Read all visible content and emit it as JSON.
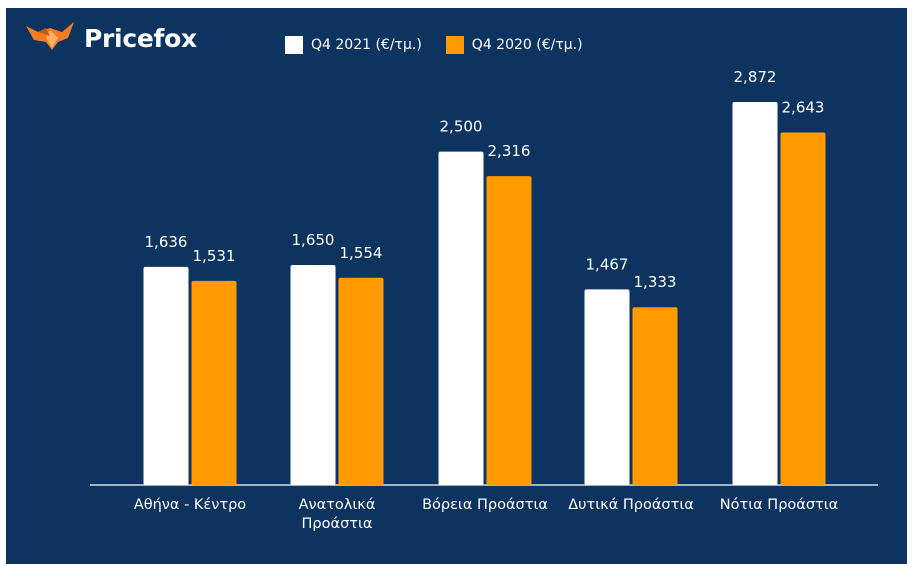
{
  "brand": {
    "name": "Pricefox",
    "icon": "fox-icon",
    "color": "#f07c24"
  },
  "chart_data": {
    "type": "bar",
    "categories": [
      "Αθήνα - Κέντρο",
      [
        "Ανατολικά",
        "Προάστια"
      ],
      "Βόρεια Προάστια",
      "Δυτικά Προάστια",
      "Νότια Προάστια"
    ],
    "series": [
      {
        "name": "Q4 2021 (€/τμ.)",
        "color": "#ffffff",
        "values": [
          1636,
          1650,
          2500,
          1467,
          2872
        ],
        "labels": [
          "1,636",
          "1,650",
          "2,500",
          "1,467",
          "2,872"
        ]
      },
      {
        "name": "Q4 2020 (€/τμ.)",
        "color": "#ff9a00",
        "values": [
          1531,
          1554,
          2316,
          1333,
          2643
        ],
        "labels": [
          "1,531",
          "1,554",
          "2,316",
          "1,333",
          "2,643"
        ]
      }
    ],
    "ylim": [
      0,
      3100
    ],
    "legend_position": "top",
    "grid": false,
    "background": "#0d3461"
  }
}
